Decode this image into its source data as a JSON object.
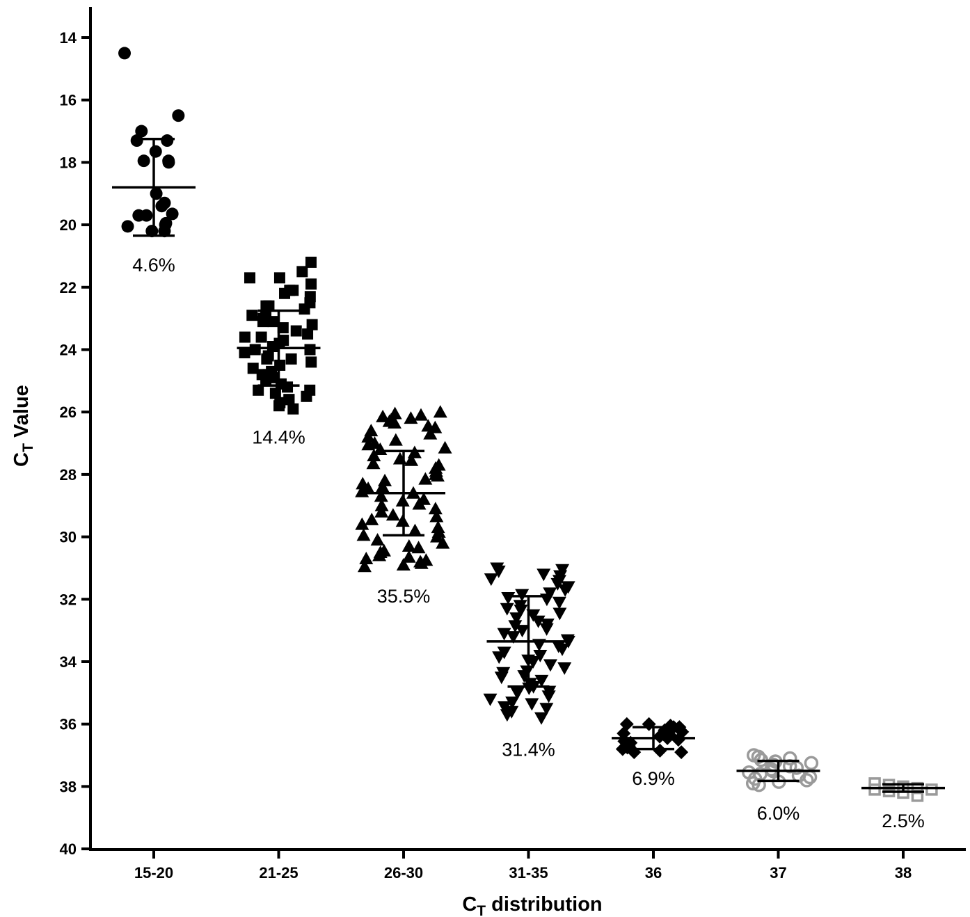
{
  "chart_data": {
    "type": "scatter",
    "xlabel": {
      "main": "C",
      "sub": "T",
      "rest": "distribution"
    },
    "ylabel": {
      "main": "C",
      "sub": "T",
      "rest": "Value"
    },
    "ylim": [
      40,
      13
    ],
    "y_inverted": true,
    "yticks": [
      "14",
      "16",
      "18",
      "20",
      "22",
      "24",
      "26",
      "28",
      "30",
      "32",
      "34",
      "36",
      "38",
      "40"
    ],
    "categories": [
      "15-20",
      "21-25",
      "26-30",
      "31-35",
      "36",
      "37",
      "38"
    ],
    "grid": false,
    "series": [
      {
        "category": "15-20",
        "marker": "circle",
        "color": "#000000",
        "filled": true,
        "percent_label": "4.6%",
        "mean": 18.8,
        "sd": 1.55,
        "points": [
          14.5,
          16.5,
          17.0,
          17.3,
          17.3,
          17.65,
          17.95,
          17.95,
          18.0,
          19.0,
          19.3,
          19.4,
          19.65,
          19.7,
          19.7,
          19.95,
          20.0,
          20.05,
          20.2,
          20.2
        ]
      },
      {
        "category": "21-25",
        "marker": "square",
        "color": "#000000",
        "filled": true,
        "percent_label": "14.4%",
        "mean": 23.95,
        "sd": 1.2,
        "points": [
          21.2,
          21.5,
          21.7,
          21.7,
          21.9,
          22.1,
          22.1,
          22.2,
          22.3,
          22.5,
          22.6,
          22.6,
          22.7,
          22.9,
          22.9,
          23.0,
          23.1,
          23.1,
          23.2,
          23.3,
          23.4,
          23.5,
          23.6,
          23.6,
          23.7,
          23.8,
          23.9,
          24.0,
          24.0,
          24.1,
          24.2,
          24.3,
          24.3,
          24.4,
          24.5,
          24.6,
          24.7,
          24.8,
          24.8,
          24.9,
          25.0,
          25.1,
          25.2,
          25.3,
          25.3,
          25.4,
          25.5,
          25.6,
          25.6,
          25.7,
          25.8,
          25.9
        ]
      },
      {
        "category": "26-30",
        "marker": "triangle-up",
        "color": "#000000",
        "filled": true,
        "percent_label": "35.5%",
        "mean": 28.6,
        "sd": 1.35,
        "points": [
          26.0,
          26.05,
          26.1,
          26.15,
          26.2,
          26.25,
          26.3,
          26.35,
          26.45,
          26.5,
          26.6,
          26.7,
          26.8,
          26.9,
          27.0,
          27.05,
          27.15,
          27.2,
          27.3,
          27.4,
          27.5,
          27.55,
          27.65,
          27.7,
          27.8,
          27.9,
          28.0,
          28.05,
          28.15,
          28.2,
          28.3,
          28.4,
          28.45,
          28.55,
          28.6,
          28.7,
          28.8,
          28.85,
          28.95,
          29.0,
          29.1,
          29.2,
          29.3,
          29.35,
          29.45,
          29.5,
          29.6,
          29.7,
          29.8,
          29.85,
          29.95,
          30.0,
          30.1,
          30.2,
          30.3,
          30.35,
          30.45,
          30.5,
          30.6,
          30.65,
          30.7,
          30.75,
          30.8,
          30.85,
          30.9,
          30.95
        ]
      },
      {
        "category": "31-35",
        "marker": "triangle-down",
        "color": "#000000",
        "filled": true,
        "percent_label": "31.4%",
        "mean": 33.35,
        "sd": 1.45,
        "points": [
          31.0,
          31.05,
          31.1,
          31.2,
          31.25,
          31.35,
          31.4,
          31.5,
          31.6,
          31.7,
          31.8,
          31.85,
          31.95,
          32.0,
          32.1,
          32.2,
          32.3,
          32.35,
          32.45,
          32.5,
          32.6,
          32.7,
          32.8,
          32.85,
          32.95,
          33.0,
          33.1,
          33.2,
          33.3,
          33.35,
          33.45,
          33.5,
          33.6,
          33.7,
          33.8,
          33.85,
          33.95,
          34.0,
          34.1,
          34.2,
          34.3,
          34.35,
          34.45,
          34.5,
          34.6,
          34.7,
          34.8,
          34.85,
          34.95,
          35.0,
          35.1,
          35.2,
          35.3,
          35.35,
          35.45,
          35.5,
          35.6,
          35.7,
          35.8
        ]
      },
      {
        "category": "36",
        "marker": "diamond",
        "color": "#000000",
        "filled": true,
        "percent_label": "6.9%",
        "mean": 36.45,
        "sd": 0.35,
        "points": [
          36.0,
          36.0,
          36.05,
          36.1,
          36.1,
          36.15,
          36.2,
          36.25,
          36.3,
          36.35,
          36.4,
          36.45,
          36.5,
          36.55,
          36.6,
          36.65,
          36.7,
          36.75,
          36.8,
          36.85,
          36.9,
          36.9
        ]
      },
      {
        "category": "37",
        "marker": "circle-open",
        "color": "#9a9a9a",
        "filled": false,
        "percent_label": "6.0%",
        "mean": 37.5,
        "sd": 0.32,
        "points": [
          37.0,
          37.05,
          37.1,
          37.15,
          37.2,
          37.25,
          37.3,
          37.35,
          37.4,
          37.45,
          37.5,
          37.55,
          37.6,
          37.65,
          37.7,
          37.75,
          37.8,
          37.85,
          37.9,
          37.95
        ]
      },
      {
        "category": "38",
        "marker": "square-open",
        "color": "#9a9a9a",
        "filled": false,
        "percent_label": "2.5%",
        "mean": 38.05,
        "sd": 0.12,
        "points": [
          37.9,
          37.95,
          38.0,
          38.05,
          38.1,
          38.1,
          38.15,
          38.2,
          38.3
        ]
      }
    ]
  }
}
